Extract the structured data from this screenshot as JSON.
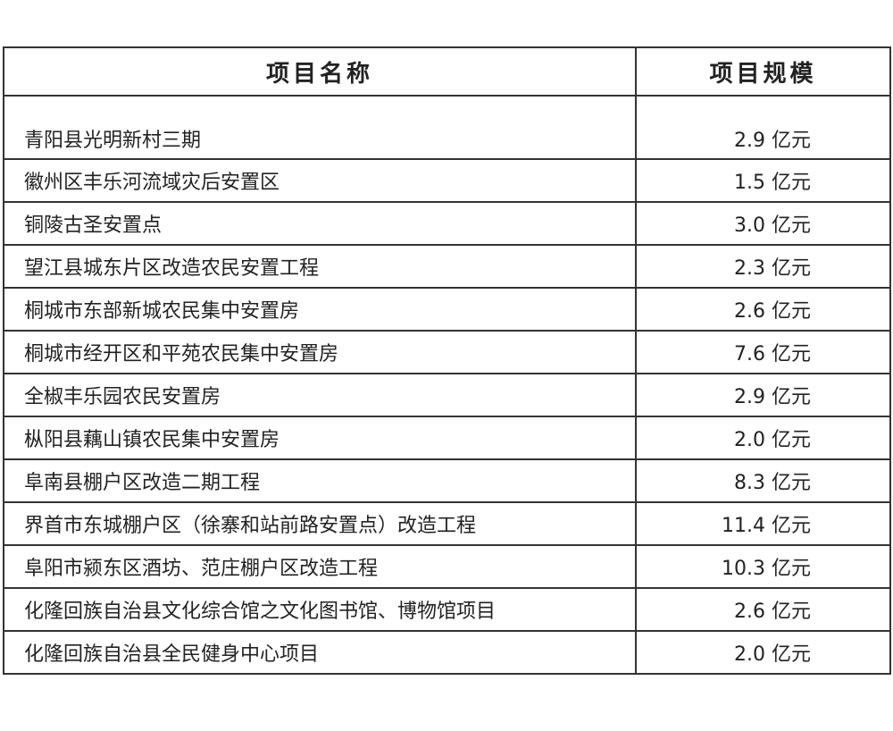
{
  "headers": {
    "name": "项目名称",
    "scale": "项目规模"
  },
  "rows": [
    {
      "name": "青阳县光明新村三期",
      "scale": "2.9 亿元"
    },
    {
      "name": "徽州区丰乐河流域灾后安置区",
      "scale": "1.5 亿元"
    },
    {
      "name": "铜陵古圣安置点",
      "scale": "3.0 亿元"
    },
    {
      "name": "望江县城东片区改造农民安置工程",
      "scale": "2.3 亿元"
    },
    {
      "name": "桐城市东部新城农民集中安置房",
      "scale": "2.6 亿元"
    },
    {
      "name": "桐城市经开区和平苑农民集中安置房",
      "scale": "7.6 亿元"
    },
    {
      "name": "全椒丰乐园农民安置房",
      "scale": "2.9 亿元"
    },
    {
      "name": "枞阳县藕山镇农民集中安置房",
      "scale": "2.0 亿元"
    },
    {
      "name": "阜南县棚户区改造二期工程",
      "scale": "8.3 亿元"
    },
    {
      "name": "界首市东城棚户区（徐寨和站前路安置点）改造工程",
      "scale": "11.4 亿元"
    },
    {
      "name": "阜阳市颍东区酒坊、范庄棚户区改造工程",
      "scale": "10.3 亿元"
    },
    {
      "name": "化隆回族自治县文化综合馆之文化图书馆、博物馆项目",
      "scale": "2.6 亿元"
    },
    {
      "name": "化隆回族自治县全民健身中心项目",
      "scale": "2.0 亿元"
    }
  ]
}
